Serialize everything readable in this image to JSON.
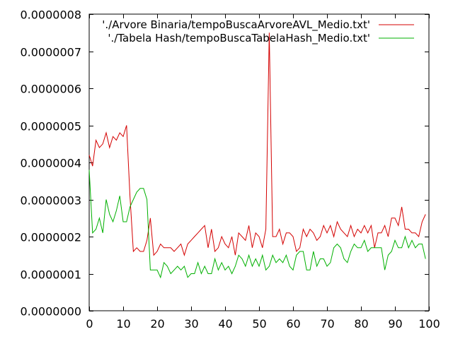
{
  "chart_data": {
    "type": "line",
    "title": "",
    "xlabel": "",
    "ylabel": "",
    "xlim": [
      0,
      100
    ],
    "ylim": [
      0,
      8e-07
    ],
    "x_ticks": [
      "0",
      "10",
      "20",
      "30",
      "40",
      "50",
      "60",
      "70",
      "80",
      "90",
      "100"
    ],
    "y_ticks": [
      "0.0000000",
      "0.0000001",
      "0.0000002",
      "0.0000003",
      "0.0000004",
      "0.0000005",
      "0.0000006",
      "0.0000007",
      "0.0000008"
    ],
    "grid": false,
    "legend_position": "top-right",
    "series": [
      {
        "name": "'./Arvore Binaria/tempoBuscaArvoreAVL_Medio.txt'",
        "color": "#d40000",
        "values": [
          4.2e-07,
          3.9e-07,
          4.6e-07,
          4.4e-07,
          4.5e-07,
          4.8e-07,
          4.4e-07,
          4.7e-07,
          4.6e-07,
          4.8e-07,
          4.7e-07,
          5e-07,
          3.1e-07,
          1.6e-07,
          1.7e-07,
          1.6e-07,
          1.6e-07,
          1.9e-07,
          2.5e-07,
          1.5e-07,
          1.6e-07,
          1.8e-07,
          1.7e-07,
          1.7e-07,
          1.7e-07,
          1.6e-07,
          1.7e-07,
          1.8e-07,
          1.5e-07,
          1.8e-07,
          1.9e-07,
          2e-07,
          2.1e-07,
          2.2e-07,
          2.3e-07,
          1.7e-07,
          2.2e-07,
          1.6e-07,
          1.7e-07,
          2e-07,
          1.8e-07,
          1.7e-07,
          2e-07,
          1.5e-07,
          2.1e-07,
          2e-07,
          1.9e-07,
          2.3e-07,
          1.7e-07,
          2.1e-07,
          2e-07,
          1.7e-07,
          2.2e-07,
          7.5e-07,
          2e-07,
          2e-07,
          2.2e-07,
          1.8e-07,
          2.1e-07,
          2.1e-07,
          2e-07,
          1.6e-07,
          1.7e-07,
          2.2e-07,
          2e-07,
          2.2e-07,
          2.1e-07,
          1.9e-07,
          2e-07,
          2.3e-07,
          2.1e-07,
          2.3e-07,
          2e-07,
          2.4e-07,
          2.2e-07,
          2.1e-07,
          2e-07,
          2.3e-07,
          2e-07,
          2.2e-07,
          2.1e-07,
          2.3e-07,
          2.1e-07,
          2.3e-07,
          1.7e-07,
          2.1e-07,
          2.1e-07,
          2.3e-07,
          2e-07,
          2.5e-07,
          2.5e-07,
          2.3e-07,
          2.8e-07,
          2.2e-07,
          2.2e-07,
          2.1e-07,
          2.1e-07,
          2e-07,
          2.4e-07,
          2.6e-07
        ]
      },
      {
        "name": "'./Tabela Hash/tempoBuscaTabelaHash_Medio.txt'",
        "color": "#00b000",
        "values": [
          3.8e-07,
          2.1e-07,
          2.2e-07,
          2.5e-07,
          2.1e-07,
          3e-07,
          2.6e-07,
          2.4e-07,
          2.7e-07,
          3.1e-07,
          2.4e-07,
          2.4e-07,
          2.8e-07,
          3e-07,
          3.2e-07,
          3.3e-07,
          3.3e-07,
          3e-07,
          1.1e-07,
          1.1e-07,
          1.1e-07,
          9e-08,
          1.3e-07,
          1.2e-07,
          1e-07,
          1.1e-07,
          1.2e-07,
          1.1e-07,
          1.2e-07,
          9e-08,
          1e-07,
          1e-07,
          1.3e-07,
          1e-07,
          1.2e-07,
          1e-07,
          1e-07,
          1.4e-07,
          1.1e-07,
          1.3e-07,
          1.1e-07,
          1.2e-07,
          1e-07,
          1.2e-07,
          1.5e-07,
          1.4e-07,
          1.2e-07,
          1.5e-07,
          1.2e-07,
          1.4e-07,
          1.2e-07,
          1.5e-07,
          1.1e-07,
          1.2e-07,
          1.5e-07,
          1.3e-07,
          1.4e-07,
          1.3e-07,
          1.5e-07,
          1.2e-07,
          1.1e-07,
          1.5e-07,
          1.6e-07,
          1.6e-07,
          1.1e-07,
          1.1e-07,
          1.6e-07,
          1.2e-07,
          1.4e-07,
          1.4e-07,
          1.2e-07,
          1.3e-07,
          1.7e-07,
          1.8e-07,
          1.7e-07,
          1.4e-07,
          1.3e-07,
          1.6e-07,
          1.8e-07,
          1.7e-07,
          1.7e-07,
          1.9e-07,
          1.6e-07,
          1.7e-07,
          1.7e-07,
          1.7e-07,
          1.7e-07,
          1.1e-07,
          1.5e-07,
          1.6e-07,
          1.9e-07,
          1.7e-07,
          1.7e-07,
          2e-07,
          1.7e-07,
          1.9e-07,
          1.7e-07,
          1.8e-07,
          1.8e-07,
          1.4e-07
        ]
      }
    ]
  }
}
